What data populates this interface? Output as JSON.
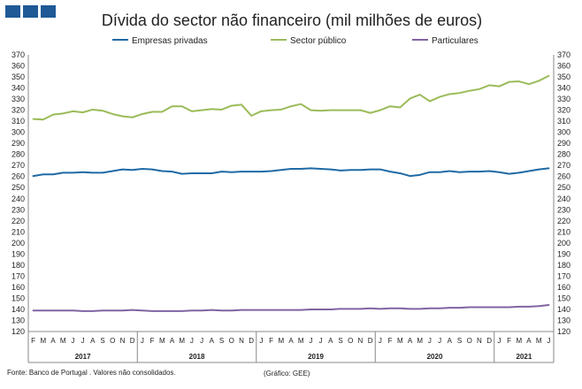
{
  "header": {
    "brand_blocks": [
      "#1f5a96",
      "#1f5a96",
      "#1f5a96"
    ]
  },
  "chart_data": {
    "type": "line",
    "title": "Dívida do sector não financeiro (mil milhões de euros)",
    "xlabel": "",
    "ylabel": "",
    "ylim": [
      120,
      370
    ],
    "yticks": [
      120,
      130,
      140,
      150,
      160,
      170,
      180,
      190,
      200,
      210,
      220,
      230,
      240,
      250,
      260,
      270,
      280,
      290,
      300,
      310,
      320,
      330,
      340,
      350,
      360,
      370
    ],
    "grid": false,
    "legend_placement": "top",
    "month_labels": [
      "F",
      "M",
      "A",
      "M",
      "J",
      "J",
      "A",
      "S",
      "O",
      "N",
      "D",
      "J",
      "F",
      "M",
      "A",
      "M",
      "J",
      "J",
      "A",
      "S",
      "O",
      "N",
      "D",
      "J",
      "F",
      "M",
      "A",
      "M",
      "J",
      "J",
      "A",
      "S",
      "O",
      "N",
      "D",
      "J",
      "F",
      "M",
      "A",
      "M",
      "J",
      "J",
      "A",
      "S",
      "O",
      "N",
      "D",
      "J",
      "F",
      "M",
      "A",
      "M",
      "J"
    ],
    "year_labels": [
      {
        "label": "2017",
        "start": 0,
        "end": 10
      },
      {
        "label": "2018",
        "start": 11,
        "end": 22
      },
      {
        "label": "2019",
        "start": 23,
        "end": 34
      },
      {
        "label": "2020",
        "start": 35,
        "end": 46
      },
      {
        "label": "2021",
        "start": 47,
        "end": 52
      }
    ],
    "series": [
      {
        "name": "Empresas privadas",
        "color": "#1f6aa5",
        "values": [
          260.5,
          262,
          262,
          263.5,
          263.5,
          264,
          263.5,
          263.5,
          265,
          266.5,
          266,
          267,
          266.5,
          265,
          264.5,
          262.5,
          263,
          263,
          263,
          264.5,
          264,
          264.5,
          264.5,
          264.5,
          265,
          266,
          267,
          267,
          267.5,
          267,
          266.5,
          265.5,
          266,
          266,
          266.5,
          266.5,
          264.5,
          263,
          260.5,
          261.5,
          264,
          264,
          265,
          264,
          264.5,
          264.5,
          265,
          264,
          262.5,
          263.5,
          265,
          266.5,
          267.5
        ]
      },
      {
        "name": "Sector público",
        "color": "#9bbb59",
        "values": [
          312,
          311.5,
          316,
          317,
          319,
          318,
          320.5,
          319.5,
          316.5,
          314.5,
          313.5,
          316.5,
          318.5,
          318.5,
          323.5,
          323.5,
          319,
          320,
          321,
          320.5,
          324,
          325,
          315,
          319,
          320,
          320.5,
          323.5,
          325.5,
          320,
          319.5,
          320,
          320,
          320,
          320,
          317.5,
          320,
          323.5,
          322.5,
          330.5,
          334,
          328,
          332,
          334.5,
          335.5,
          337.5,
          339,
          342.5,
          341.5,
          345.5,
          346,
          343.5,
          346.5,
          351
        ]
      },
      {
        "name": "Particulares",
        "color": "#8064a2",
        "values": [
          139,
          139,
          139,
          139,
          139,
          138.5,
          138.5,
          139,
          139,
          139,
          139.5,
          139,
          138.5,
          138.5,
          138.5,
          138.5,
          139,
          139,
          139.5,
          139,
          139,
          139.5,
          139.5,
          139.5,
          139.5,
          139.5,
          139.5,
          139.5,
          140,
          140,
          140,
          140.5,
          140.5,
          140.5,
          141,
          140.5,
          141,
          141,
          140.5,
          140.5,
          141,
          141,
          141.5,
          141.5,
          142,
          142,
          142,
          142,
          142,
          142.5,
          142.5,
          143,
          144
        ]
      }
    ]
  },
  "footer": {
    "source": "Fonte: Banco de Portugal . Valores não consolidados.",
    "credit": "(Gráfico: GEE)"
  }
}
